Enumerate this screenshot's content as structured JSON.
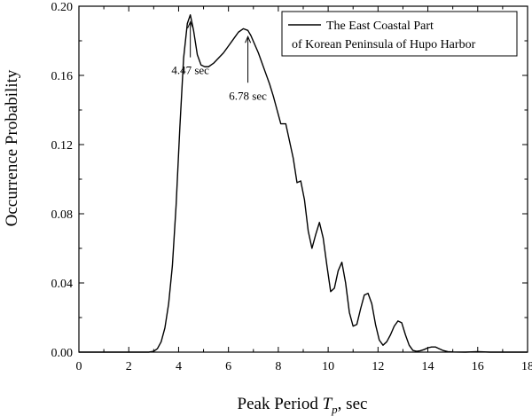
{
  "chart_data": {
    "type": "line",
    "xlabel_main": "Peak Period ",
    "xlabel_symbol": "T",
    "xlabel_sub": "p",
    "xlabel_suffix": ", sec",
    "ylabel": "Occurrence Probability",
    "xlim": [
      0,
      18
    ],
    "ylim": [
      0,
      0.2
    ],
    "xticks": [
      0,
      2,
      4,
      6,
      8,
      10,
      12,
      14,
      16,
      18
    ],
    "yticks": [
      0.0,
      0.04,
      0.08,
      0.12,
      0.16,
      0.2
    ],
    "xtick_labels": [
      "0",
      "2",
      "4",
      "6",
      "8",
      "10",
      "12",
      "14",
      "16",
      "18"
    ],
    "ytick_labels": [
      "0.00",
      "0.04",
      "0.08",
      "0.12",
      "0.16",
      "0.20"
    ],
    "legend": {
      "position": "top-right",
      "line1": "The East Coastal Part",
      "line2": "of Korean Peninsula of Hupo Harbor"
    },
    "annotations": [
      {
        "text": "4.47 sec",
        "x": 4.47,
        "y": 0.193
      },
      {
        "text": "6.78 sec",
        "x": 6.78,
        "y": 0.185
      }
    ],
    "series": [
      {
        "name": "The East Coastal Part of Korean Peninsula of Hupo Harbor",
        "x": [
          0,
          2.8,
          3.0,
          3.15,
          3.3,
          3.45,
          3.6,
          3.75,
          3.9,
          4.05,
          4.2,
          4.35,
          4.47,
          4.6,
          4.75,
          4.9,
          5.05,
          5.2,
          5.4,
          5.6,
          5.8,
          6.0,
          6.2,
          6.4,
          6.6,
          6.78,
          6.9,
          7.05,
          7.2,
          7.35,
          7.5,
          7.65,
          7.8,
          7.95,
          8.1,
          8.3,
          8.45,
          8.6,
          8.75,
          8.9,
          9.05,
          9.2,
          9.35,
          9.5,
          9.65,
          9.8,
          9.95,
          10.1,
          10.25,
          10.4,
          10.55,
          10.7,
          10.85,
          11.0,
          11.15,
          11.3,
          11.45,
          11.6,
          11.75,
          11.9,
          12.05,
          12.2,
          12.35,
          12.5,
          12.65,
          12.8,
          12.95,
          13.1,
          13.25,
          13.4,
          13.55,
          13.7,
          13.85,
          14.0,
          14.15,
          14.3,
          14.45,
          14.6,
          14.8,
          15.0,
          15.5,
          16.0,
          16.5,
          18.0
        ],
        "y": [
          0,
          0,
          0.0005,
          0.002,
          0.006,
          0.014,
          0.028,
          0.05,
          0.085,
          0.13,
          0.17,
          0.19,
          0.195,
          0.186,
          0.172,
          0.166,
          0.165,
          0.165,
          0.167,
          0.17,
          0.173,
          0.177,
          0.181,
          0.185,
          0.187,
          0.186,
          0.183,
          0.178,
          0.173,
          0.167,
          0.161,
          0.155,
          0.148,
          0.14,
          0.132,
          0.132,
          0.122,
          0.112,
          0.098,
          0.099,
          0.088,
          0.07,
          0.06,
          0.068,
          0.075,
          0.066,
          0.05,
          0.035,
          0.037,
          0.047,
          0.052,
          0.04,
          0.023,
          0.015,
          0.016,
          0.025,
          0.033,
          0.034,
          0.028,
          0.016,
          0.007,
          0.004,
          0.006,
          0.01,
          0.015,
          0.018,
          0.017,
          0.01,
          0.004,
          0.001,
          0.0005,
          0.0008,
          0.0015,
          0.0025,
          0.003,
          0.003,
          0.002,
          0.001,
          0.0003,
          0.0001,
          0,
          0.0003,
          0,
          0
        ]
      }
    ]
  }
}
